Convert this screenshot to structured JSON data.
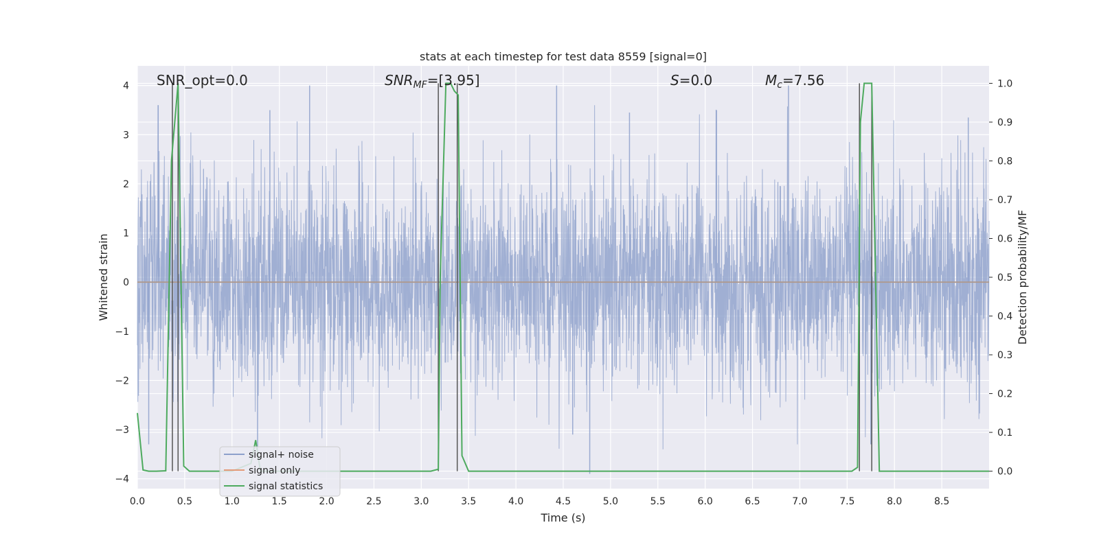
{
  "chart_data": {
    "type": "line",
    "title": "stats at each timestep for test data 8559 [signal=0]",
    "xlabel": "Time (s)",
    "ylabel": "Whitened strain",
    "ylabel_right": "Detection probability/MF",
    "xlim": [
      0.0,
      9.0
    ],
    "ylim": [
      -4.2,
      4.4
    ],
    "ylim_right": [
      -0.045,
      1.045
    ],
    "x_ticks": [
      "0.0",
      "0.5",
      "1.0",
      "1.5",
      "2.0",
      "2.5",
      "3.0",
      "3.5",
      "4.0",
      "4.5",
      "5.0",
      "5.5",
      "6.0",
      "6.5",
      "7.0",
      "7.5",
      "8.0",
      "8.5"
    ],
    "y_ticks": [
      "4",
      "3",
      "2",
      "1",
      "0",
      "−1",
      "−2",
      "−3",
      "−4"
    ],
    "y_ticks_right": [
      "1.0",
      "0.9",
      "0.8",
      "0.7",
      "0.6",
      "0.5",
      "0.4",
      "0.3",
      "0.2",
      "0.1",
      "0.0"
    ],
    "grid": true,
    "legend_position": "lower-left",
    "annotations": {
      "snr_opt": "SNR_opt=0.0",
      "snr_mf_main": "SNR",
      "snr_mf_sub": "MF",
      "snr_mf_value": "=[3.95]",
      "s_main": "S",
      "s_value": "=0.0",
      "mc_main": "M",
      "mc_sub": "c",
      "mc_value": "=7.56"
    },
    "series": [
      {
        "name": "signal+ noise",
        "axis": "left",
        "color": "#8da0cb",
        "description_values": "dense whitened noise, roughly within -2.8 to 3.5, extremes about -3.9 and 4.0",
        "peaks": [
          {
            "x": 0.22,
            "y": 3.6
          },
          {
            "x": 0.43,
            "y": 4.0
          },
          {
            "x": 1.4,
            "y": 3.5
          },
          {
            "x": 1.82,
            "y": 4.0
          },
          {
            "x": 3.18,
            "y": 3.4
          },
          {
            "x": 4.43,
            "y": 4.0
          },
          {
            "x": 4.78,
            "y": -3.9
          },
          {
            "x": 5.2,
            "y": 3.45
          },
          {
            "x": 6.12,
            "y": 3.5
          },
          {
            "x": 6.88,
            "y": 4.0
          },
          {
            "x": 8.78,
            "y": 3.35
          },
          {
            "x": 1.27,
            "y": -3.5
          },
          {
            "x": 0.12,
            "y": -3.3
          },
          {
            "x": 4.6,
            "y": -3.1
          },
          {
            "x": 7.75,
            "y": -3.3
          }
        ]
      },
      {
        "name": "signal only",
        "axis": "left",
        "color": "#e39a78",
        "x": [
          0.0,
          9.0
        ],
        "y": [
          0.0,
          0.0
        ]
      },
      {
        "name": "signal statistics",
        "axis": "right",
        "color": "#4daa5e",
        "x": [
          0.0,
          0.06,
          0.12,
          0.2,
          0.3,
          0.36,
          0.43,
          0.49,
          0.55,
          1.0,
          1.2,
          1.25,
          1.3,
          1.5,
          3.1,
          3.18,
          3.2,
          3.26,
          3.31,
          3.35,
          3.39,
          3.43,
          3.5,
          4.0,
          5.0,
          6.0,
          7.0,
          7.55,
          7.61,
          7.64,
          7.68,
          7.76,
          7.84,
          8.0,
          9.0
        ],
        "y": [
          0.15,
          0.003,
          0.0,
          0.0,
          0.001,
          0.8,
          1.0,
          0.013,
          0.0,
          0.0,
          0.02,
          0.08,
          0.0,
          0.0,
          0.0,
          0.005,
          0.5,
          1.0,
          1.0,
          0.98,
          0.97,
          0.04,
          0.0,
          0.0,
          0.0,
          0.0,
          0.0,
          0.0,
          0.01,
          0.9,
          1.0,
          1.0,
          0.0,
          0.0,
          0.0
        ]
      }
    ],
    "vertical_markers": [
      0.37,
      0.43,
      3.18,
      3.38,
      7.63,
      7.76
    ],
    "marker_color": "#555555"
  }
}
